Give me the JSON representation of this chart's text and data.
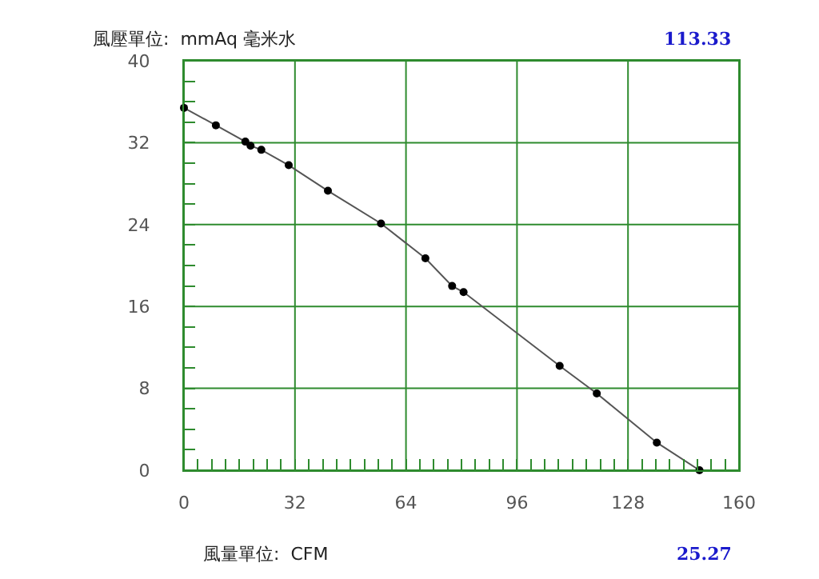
{
  "chart_data": {
    "type": "line",
    "xlabel": "風量單位:  CFM",
    "ylabel": "風壓單位:  mmAq 毫米水",
    "annotations": [
      "113.33",
      "25.27"
    ],
    "x": [
      0,
      9.2,
      17.7,
      19.2,
      22.3,
      30.2,
      41.5,
      56.8,
      69.6,
      77.3,
      80.6,
      108.3,
      119,
      136.3,
      148.6
    ],
    "series": [
      {
        "color": "#555555",
        "values": [
          35.4,
          33.7,
          32.1,
          31.7,
          31.3,
          29.8,
          27.3,
          24.1,
          20.7,
          18.0,
          17.4,
          10.2,
          7.5,
          2.7,
          0
        ]
      }
    ],
    "marker": "circle",
    "xlim": [
      0,
      160
    ],
    "ylim": [
      0,
      40
    ],
    "xticks": [
      0,
      {
        "value": 4,
        "label": null
      },
      {
        "value": 8,
        "label": null
      },
      {
        "value": 12,
        "label": null
      },
      {
        "value": 16,
        "label": null
      },
      {
        "value": 20,
        "label": null
      },
      {
        "value": 24,
        "label": null
      },
      {
        "value": 28,
        "label": null
      },
      32,
      {
        "value": 36,
        "label": null
      },
      {
        "value": 40,
        "label": null
      },
      {
        "value": 44,
        "label": null
      },
      {
        "value": 48,
        "label": null
      },
      {
        "value": 52,
        "label": null
      },
      {
        "value": 56,
        "label": null
      },
      {
        "value": 60,
        "label": null
      },
      64,
      {
        "value": 68,
        "label": null
      },
      {
        "value": 72,
        "label": null
      },
      {
        "value": 76,
        "label": null
      },
      {
        "value": 80,
        "label": null
      },
      {
        "value": 84,
        "label": null
      },
      {
        "value": 88,
        "label": null
      },
      {
        "value": 92,
        "label": null
      },
      96,
      {
        "value": 100,
        "label": null
      },
      {
        "value": 104,
        "label": null
      },
      {
        "value": 108,
        "label": null
      },
      {
        "value": 112,
        "label": null
      },
      {
        "value": 116,
        "label": null
      },
      {
        "value": 120,
        "label": null
      },
      {
        "value": 124,
        "label": null
      },
      128,
      {
        "value": 132,
        "label": null
      },
      {
        "value": 136,
        "label": null
      },
      {
        "value": 140,
        "label": null
      },
      {
        "value": 144,
        "label": null
      },
      {
        "value": 148,
        "label": null
      },
      {
        "value": 152,
        "label": null
      },
      {
        "value": 156,
        "label": null
      },
      160
    ],
    "yticks": [
      0,
      {
        "value": 2,
        "label": null
      },
      {
        "value": 4,
        "label": null
      },
      {
        "value": 6,
        "label": null
      },
      8,
      {
        "value": 10,
        "label": null
      },
      {
        "value": 12,
        "label": null
      },
      {
        "value": 14,
        "label": null
      },
      16,
      {
        "value": 18,
        "label": null
      },
      {
        "value": 20,
        "label": null
      },
      {
        "value": 22,
        "label": null
      },
      24,
      {
        "value": 26,
        "label": null
      },
      {
        "value": 28,
        "label": null
      },
      {
        "value": 30,
        "label": null
      },
      32,
      {
        "value": 34,
        "label": null
      },
      {
        "value": 36,
        "label": null
      },
      {
        "value": 38,
        "label": null
      },
      40
    ],
    "grid": true
  }
}
